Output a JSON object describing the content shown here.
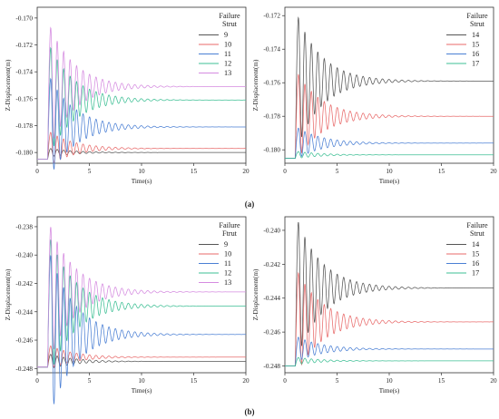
{
  "figure": {
    "panel_labels": [
      "(a)",
      "(b)"
    ]
  },
  "chart_data": [
    {
      "type": "line",
      "xlabel": "Time(s)",
      "ylabel": "Z-Displacement(m)",
      "xlim": [
        0,
        20
      ],
      "ylim": [
        -0.1808,
        -0.1692
      ],
      "xticks": [
        0,
        5,
        10,
        15,
        20
      ],
      "yticks": [
        -0.17,
        -0.172,
        -0.174,
        -0.176,
        -0.178,
        -0.18
      ],
      "legend": {
        "title": [
          "Failure",
          "Strut"
        ],
        "position": "top-right"
      },
      "baseline": -0.1805,
      "series": [
        {
          "name": "9",
          "color": "#555555",
          "final": -0.18,
          "first_peak": -0.1797
        },
        {
          "name": "10",
          "color": "#e86a6a",
          "final": -0.1797,
          "first_peak": -0.1785
        },
        {
          "name": "11",
          "color": "#4a7fd4",
          "final": -0.1781,
          "first_peak": -0.1745
        },
        {
          "name": "12",
          "color": "#3dbf94",
          "final": -0.1761,
          "first_peak": -0.1722
        },
        {
          "name": "13",
          "color": "#d58be0",
          "final": -0.1751,
          "first_peak": -0.1707
        }
      ]
    },
    {
      "type": "line",
      "xlabel": "Time(s)",
      "ylabel": "Z-Displacement(m)",
      "xlim": [
        0,
        20
      ],
      "ylim": [
        -0.1808,
        -0.1715
      ],
      "xticks": [
        0,
        5,
        10,
        15,
        20
      ],
      "yticks": [
        -0.172,
        -0.174,
        -0.176,
        -0.178,
        -0.18
      ],
      "legend": {
        "title": [
          "Failure",
          "Strut"
        ],
        "position": "top-right"
      },
      "baseline": -0.1805,
      "series": [
        {
          "name": "14",
          "color": "#555555",
          "final": -0.1759,
          "first_peak": -0.1721
        },
        {
          "name": "15",
          "color": "#e86a6a",
          "final": -0.178,
          "first_peak": -0.1755
        },
        {
          "name": "16",
          "color": "#4a7fd4",
          "final": -0.1796,
          "first_peak": -0.1787
        },
        {
          "name": "17",
          "color": "#3dbf94",
          "final": -0.1803,
          "first_peak": -0.1801
        }
      ]
    },
    {
      "type": "line",
      "xlabel": "Time(s)",
      "ylabel": "Z-Displacement(m)",
      "xlim": [
        0,
        20
      ],
      "ylim": [
        -0.2483,
        -0.2373
      ],
      "xticks": [
        0,
        5,
        10,
        15,
        20
      ],
      "yticks": [
        -0.238,
        -0.24,
        -0.242,
        -0.244,
        -0.246,
        -0.248
      ],
      "legend": {
        "title": [
          "Failure",
          "Ftrut"
        ],
        "position": "top-right"
      },
      "baseline": -0.2479,
      "series": [
        {
          "name": "9",
          "color": "#555555",
          "final": -0.2475,
          "first_peak": -0.247
        },
        {
          "name": "10",
          "color": "#e86a6a",
          "final": -0.2472,
          "first_peak": -0.2464
        },
        {
          "name": "11",
          "color": "#4a7fd4",
          "final": -0.2456,
          "first_peak": -0.24
        },
        {
          "name": "12",
          "color": "#3dbf94",
          "final": -0.2436,
          "first_peak": -0.2389
        },
        {
          "name": "13",
          "color": "#d58be0",
          "final": -0.2426,
          "first_peak": -0.238
        }
      ]
    },
    {
      "type": "line",
      "xlabel": "Time(s)",
      "ylabel": "Z-Displacement(m)",
      "xlim": [
        0,
        20
      ],
      "ylim": [
        -0.2484,
        -0.2392
      ],
      "xticks": [
        0,
        5,
        10,
        15,
        20
      ],
      "yticks": [
        -0.24,
        -0.242,
        -0.244,
        -0.246,
        -0.248
      ],
      "legend": {
        "title": [
          "Failure",
          "Strut"
        ],
        "position": "top-right"
      },
      "baseline": -0.248,
      "series": [
        {
          "name": "14",
          "color": "#555555",
          "final": -0.2434,
          "first_peak": -0.2395
        },
        {
          "name": "15",
          "color": "#e86a6a",
          "final": -0.2454,
          "first_peak": -0.2425
        },
        {
          "name": "16",
          "color": "#4a7fd4",
          "final": -0.247,
          "first_peak": -0.2463
        },
        {
          "name": "17",
          "color": "#3dbf94",
          "final": -0.2477,
          "first_peak": -0.2475
        }
      ]
    }
  ]
}
